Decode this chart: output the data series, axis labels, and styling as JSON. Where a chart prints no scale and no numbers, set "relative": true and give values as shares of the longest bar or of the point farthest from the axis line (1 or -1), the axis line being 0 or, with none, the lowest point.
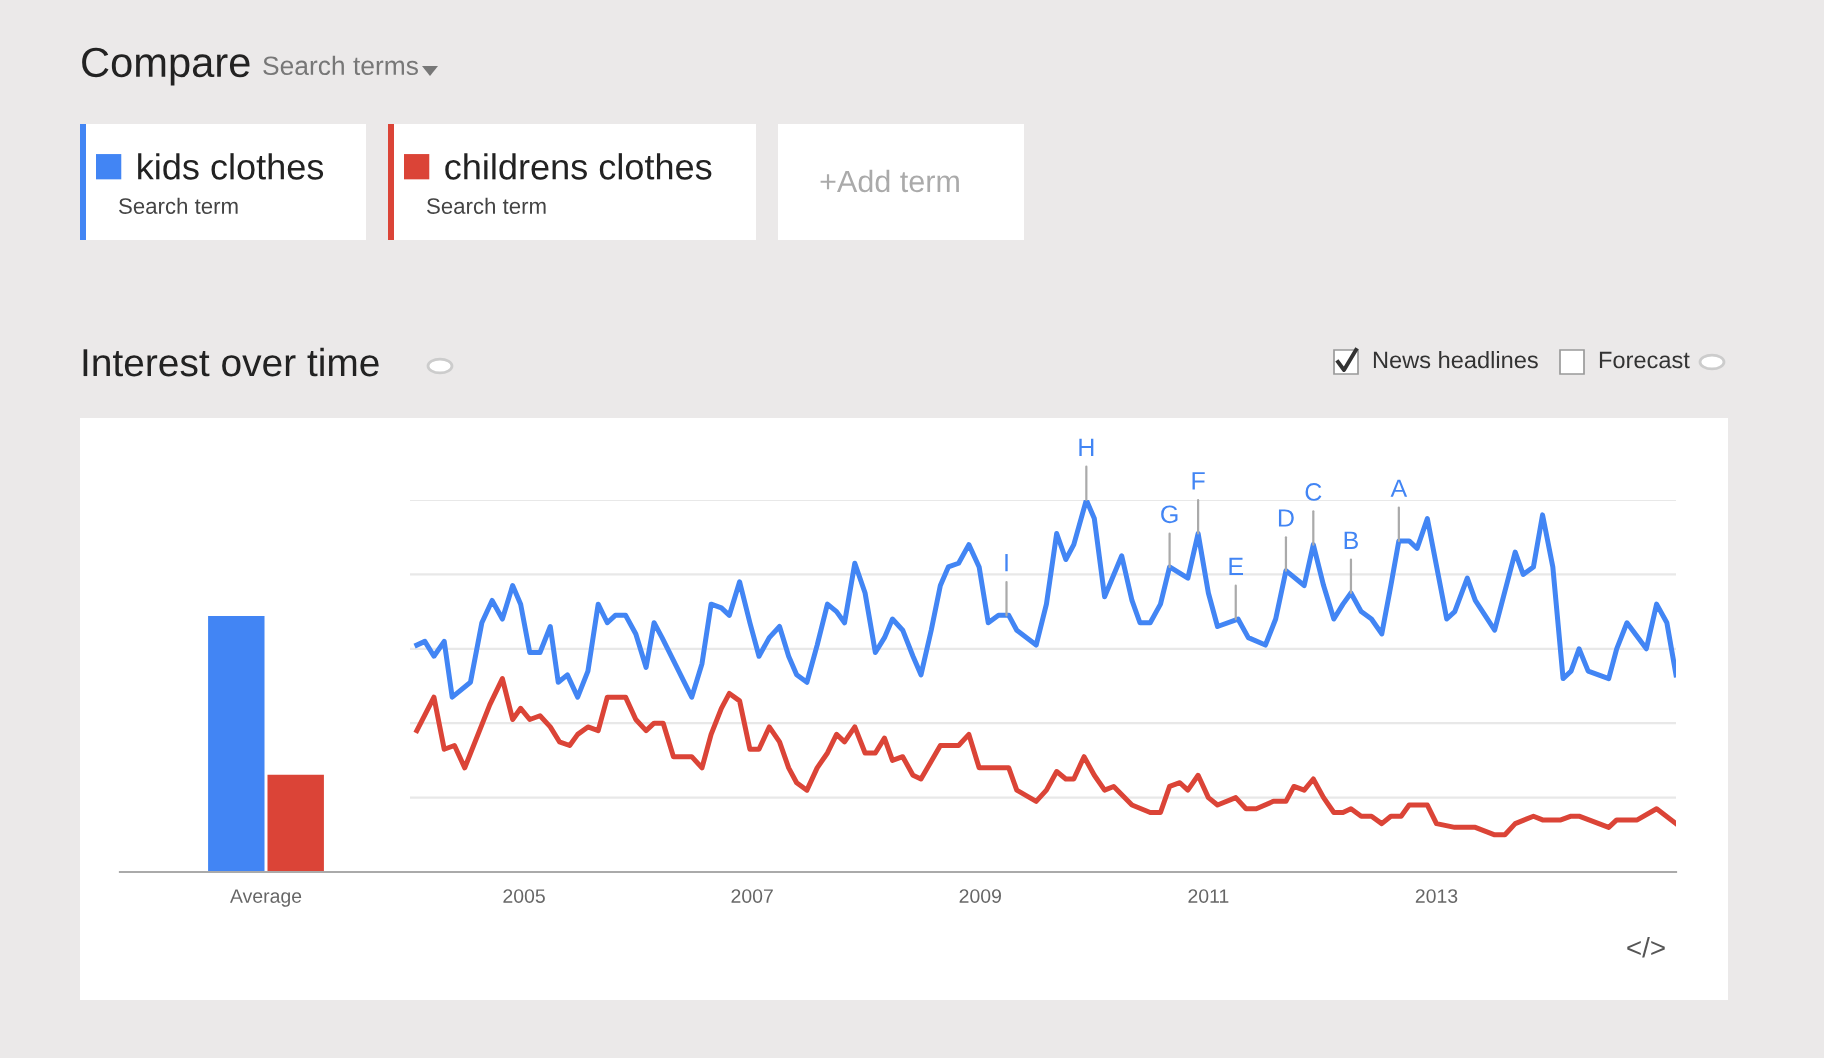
{
  "chart_data": [
    {
      "type": "other",
      "title": "Compare",
      "annotations": [
        "Search terms",
        "Search term",
        "Search term",
        "+Add term",
        "News headlines",
        "Forecast",
        "</>"
      ]
    },
    {
      "type": "bar",
      "title": "Interest over time",
      "categories": [
        "Average"
      ],
      "relative": true,
      "series": [
        {
          "color": "#4285f4",
          "values": [
            1
          ]
        },
        {
          "color": "#db4437",
          "values": [
            0.38
          ]
        }
      ]
    },
    {
      "type": "line",
      "relative": true,
      "xlim": [
        2004.0,
        2015.1
      ],
      "xticks": [
        2005,
        2007,
        2009,
        2011,
        2013
      ],
      "grid": "y",
      "legend": "top left",
      "marker": "none",
      "line_style": "solid",
      "series": [
        {
          "name": "kids clothes",
          "color": "#4285f4",
          "x": [
            2004.06,
            2004.13,
            2004.21,
            2004.3,
            2004.37,
            2004.53,
            2004.63,
            2004.72,
            2004.81,
            2004.9,
            2004.97,
            2005.05,
            2005.14,
            2005.23,
            2005.3,
            2005.38,
            2005.47,
            2005.56,
            2005.65,
            2005.73,
            2005.8,
            2005.89,
            2005.98,
            2006.07,
            2006.14,
            2006.21,
            2006.47,
            2006.56,
            2006.64,
            2006.73,
            2006.8,
            2006.89,
            2006.98,
            2007.06,
            2007.15,
            2007.24,
            2007.32,
            2007.39,
            2007.48,
            2007.57,
            2007.66,
            2007.74,
            2007.81,
            2007.9,
            2007.99,
            2008.08,
            2008.16,
            2008.23,
            2008.32,
            2008.41,
            2008.48,
            2008.57,
            2008.65,
            2008.72,
            2008.81,
            2008.9,
            2008.99,
            2009.07,
            2009.16,
            2009.25,
            2009.32,
            2009.49,
            2009.58,
            2009.67,
            2009.75,
            2009.82,
            2009.93,
            2010.0,
            2010.09,
            2010.24,
            2010.33,
            2010.4,
            2010.49,
            2010.58,
            2010.66,
            2010.82,
            2010.91,
            2011.0,
            2011.08,
            2011.26,
            2011.35,
            2011.5,
            2011.59,
            2011.68,
            2011.84,
            2011.92,
            2012.01,
            2012.1,
            2012.18,
            2012.25,
            2012.34,
            2012.43,
            2012.52,
            2012.6,
            2012.67,
            2012.76,
            2012.83,
            2012.92,
            2013.09,
            2013.16,
            2013.27,
            2013.34,
            2013.51,
            2013.69,
            2013.76,
            2013.85,
            2013.93,
            2014.02,
            2014.11,
            2014.18,
            2014.25,
            2014.33,
            2014.51,
            2014.58,
            2014.67,
            2014.84,
            2014.93,
            2015.02,
            2015.1
          ],
          "values": [
            0.61,
            0.62,
            0.58,
            0.62,
            0.47,
            0.51,
            0.67,
            0.73,
            0.68,
            0.77,
            0.72,
            0.59,
            0.59,
            0.66,
            0.51,
            0.53,
            0.47,
            0.54,
            0.72,
            0.67,
            0.69,
            0.69,
            0.64,
            0.55,
            0.67,
            0.63,
            0.47,
            0.56,
            0.72,
            0.71,
            0.69,
            0.78,
            0.67,
            0.58,
            0.63,
            0.66,
            0.58,
            0.53,
            0.51,
            0.61,
            0.72,
            0.7,
            0.67,
            0.83,
            0.75,
            0.59,
            0.63,
            0.68,
            0.65,
            0.58,
            0.53,
            0.65,
            0.77,
            0.82,
            0.83,
            0.88,
            0.82,
            0.67,
            0.69,
            0.69,
            0.65,
            0.61,
            0.72,
            0.91,
            0.84,
            0.88,
            1.0,
            0.95,
            0.74,
            0.85,
            0.73,
            0.67,
            0.67,
            0.72,
            0.82,
            0.79,
            0.91,
            0.75,
            0.66,
            0.68,
            0.63,
            0.61,
            0.68,
            0.81,
            0.77,
            0.88,
            0.77,
            0.68,
            0.72,
            0.75,
            0.7,
            0.68,
            0.64,
            0.77,
            0.89,
            0.89,
            0.87,
            0.95,
            0.68,
            0.7,
            0.79,
            0.73,
            0.65,
            0.86,
            0.8,
            0.82,
            0.96,
            0.82,
            0.52,
            0.54,
            0.6,
            0.54,
            0.52,
            0.6,
            0.67,
            0.6,
            0.72,
            0.67,
            0.53
          ]
        },
        {
          "name": "childrens clothes",
          "color": "#db4437",
          "x": [
            2004.06,
            2004.21,
            2004.3,
            2004.39,
            2004.48,
            2004.7,
            2004.81,
            2004.9,
            2004.97,
            2005.05,
            2005.14,
            2005.23,
            2005.31,
            2005.4,
            2005.47,
            2005.56,
            2005.65,
            2005.73,
            2005.89,
            2005.98,
            2006.07,
            2006.14,
            2006.22,
            2006.31,
            2006.47,
            2006.56,
            2006.64,
            2006.73,
            2006.8,
            2006.89,
            2006.98,
            2007.06,
            2007.15,
            2007.24,
            2007.32,
            2007.39,
            2007.48,
            2007.57,
            2007.66,
            2007.74,
            2007.81,
            2007.9,
            2007.99,
            2008.08,
            2008.16,
            2008.23,
            2008.32,
            2008.41,
            2008.48,
            2008.65,
            2008.81,
            2008.9,
            2008.99,
            2009.07,
            2009.25,
            2009.32,
            2009.49,
            2009.58,
            2009.67,
            2009.75,
            2009.82,
            2009.91,
            2010.0,
            2010.09,
            2010.17,
            2010.33,
            2010.49,
            2010.58,
            2010.66,
            2010.75,
            2010.82,
            2010.91,
            2011.0,
            2011.08,
            2011.24,
            2011.33,
            2011.42,
            2011.57,
            2011.68,
            2011.75,
            2011.84,
            2011.92,
            2012.01,
            2012.1,
            2012.18,
            2012.25,
            2012.34,
            2012.43,
            2012.52,
            2012.6,
            2012.69,
            2012.76,
            2012.92,
            2013.0,
            2013.16,
            2013.34,
            2013.51,
            2013.6,
            2013.69,
            2013.85,
            2013.93,
            2014.09,
            2014.18,
            2014.25,
            2014.51,
            2014.58,
            2014.76,
            2014.93,
            2015.1
          ],
          "values": [
            0.38,
            0.47,
            0.33,
            0.34,
            0.28,
            0.45,
            0.52,
            0.41,
            0.44,
            0.41,
            0.42,
            0.39,
            0.35,
            0.34,
            0.37,
            0.39,
            0.38,
            0.47,
            0.47,
            0.41,
            0.38,
            0.4,
            0.4,
            0.31,
            0.31,
            0.28,
            0.37,
            0.44,
            0.48,
            0.46,
            0.33,
            0.33,
            0.39,
            0.35,
            0.28,
            0.24,
            0.22,
            0.28,
            0.32,
            0.37,
            0.35,
            0.39,
            0.32,
            0.32,
            0.36,
            0.3,
            0.31,
            0.26,
            0.25,
            0.34,
            0.34,
            0.37,
            0.28,
            0.28,
            0.28,
            0.22,
            0.19,
            0.22,
            0.27,
            0.25,
            0.25,
            0.31,
            0.26,
            0.22,
            0.23,
            0.18,
            0.16,
            0.16,
            0.23,
            0.24,
            0.22,
            0.26,
            0.2,
            0.18,
            0.2,
            0.17,
            0.17,
            0.19,
            0.19,
            0.23,
            0.22,
            0.25,
            0.2,
            0.16,
            0.16,
            0.17,
            0.15,
            0.15,
            0.13,
            0.15,
            0.15,
            0.18,
            0.18,
            0.13,
            0.12,
            0.12,
            0.1,
            0.1,
            0.13,
            0.15,
            0.14,
            0.14,
            0.15,
            0.15,
            0.12,
            0.14,
            0.14,
            0.17,
            0.13
          ]
        }
      ],
      "annotations": [
        {
          "text": "I",
          "x": 2009.23,
          "y": 0.69
        },
        {
          "text": "H",
          "x": 2009.93,
          "y": 1.0
        },
        {
          "text": "G",
          "x": 2010.66,
          "y": 0.82
        },
        {
          "text": "F",
          "x": 2010.91,
          "y": 0.91
        },
        {
          "text": "E",
          "x": 2011.24,
          "y": 0.68
        },
        {
          "text": "D",
          "x": 2011.68,
          "y": 0.81
        },
        {
          "text": "C",
          "x": 2011.92,
          "y": 0.88
        },
        {
          "text": "B",
          "x": 2012.25,
          "y": 0.75
        },
        {
          "text": "A",
          "x": 2012.67,
          "y": 0.89
        }
      ]
    }
  ]
}
